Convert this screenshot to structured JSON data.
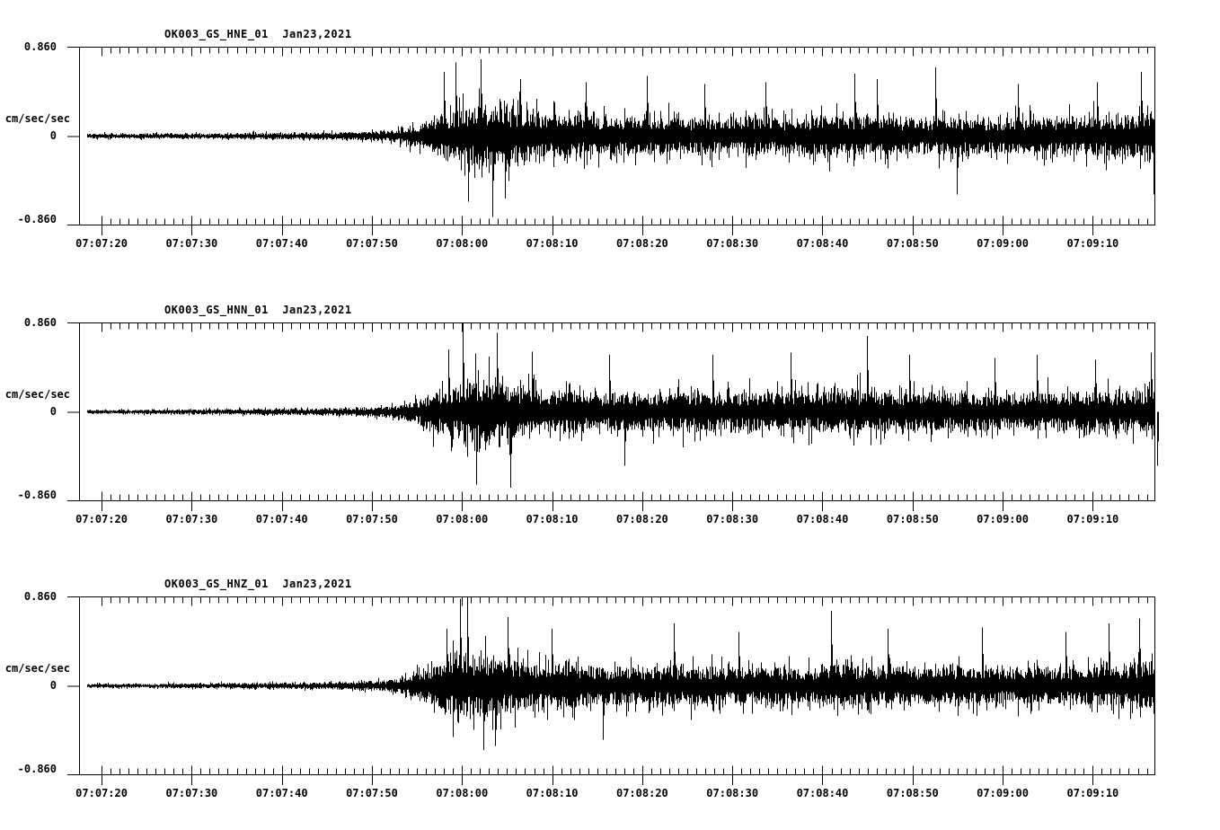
{
  "figure": {
    "background": "#ffffff",
    "foreground": "#000000",
    "panels": [
      {
        "id": "HNE",
        "title": "OK003_GS_HNE_01  Jan23,2021"
      },
      {
        "id": "HNN",
        "title": "OK003_GS_HNN_01  Jan23,2021"
      },
      {
        "id": "HNZ",
        "title": "OK003_GS_HNZ_01  Jan23,2021"
      }
    ],
    "y_axis": {
      "units": "cm/sec/sec",
      "max_label": "0.860",
      "zero_label": "0",
      "min_label": "-0.860",
      "max": 0.86,
      "min": -0.86
    },
    "x_axis": {
      "start_time": "07:07:17.5",
      "end_time": "07:09:17",
      "major_interval_sec": 10,
      "minor_interval_sec": 1,
      "first_major_offset_sec": 2.5,
      "major_tick_labels": [
        "07:07:20",
        "07:07:30",
        "07:07:40",
        "07:07:50",
        "07:08:00",
        "07:08:10",
        "07:08:20",
        "07:08:30",
        "07:08:40",
        "07:08:50",
        "07:09:00",
        "07:09:10"
      ]
    }
  },
  "chart_data": {
    "type": "line",
    "subtype": "seismogram-min-max-trace",
    "station_date": "Jan23,2021",
    "ylabel": "cm/sec/sec",
    "ylim": [
      -0.86,
      0.86
    ],
    "x_window": [
      "07:07:17.5",
      "07:09:17"
    ],
    "event_onset_time": "07:07:52",
    "peak_shaking_time": "07:08:00",
    "envelope_sample_step_sec": 2,
    "series": [
      {
        "name": "OK003_GS_HNE_01",
        "envelope": [
          0.035,
          0.035,
          0.035,
          0.035,
          0.035,
          0.04,
          0.04,
          0.04,
          0.04,
          0.045,
          0.045,
          0.05,
          0.05,
          0.055,
          0.055,
          0.06,
          0.065,
          0.08,
          0.12,
          0.2,
          0.3,
          0.4,
          0.47,
          0.48,
          0.42,
          0.37,
          0.33,
          0.35,
          0.31,
          0.28,
          0.3,
          0.32,
          0.28,
          0.3,
          0.28,
          0.26,
          0.28,
          0.31,
          0.29,
          0.26,
          0.28,
          0.31,
          0.33,
          0.3,
          0.28,
          0.3,
          0.28,
          0.27,
          0.3,
          0.28,
          0.27,
          0.26,
          0.28,
          0.27,
          0.28,
          0.3,
          0.29,
          0.31,
          0.33,
          0.37,
          0.4
        ],
        "spikes": [
          [
            40.5,
            0.62
          ],
          [
            41.8,
            0.71
          ],
          [
            43.2,
            -0.63
          ],
          [
            44.6,
            0.74
          ],
          [
            45.9,
            -0.78
          ],
          [
            47.3,
            -0.6
          ],
          [
            49.0,
            0.55
          ],
          [
            56.2,
            0.52
          ],
          [
            63.0,
            0.58
          ],
          [
            69.4,
            0.5
          ],
          [
            76.2,
            0.52
          ],
          [
            86.0,
            0.6
          ],
          [
            88.5,
            0.55
          ],
          [
            95.0,
            0.66
          ],
          [
            97.4,
            -0.56
          ],
          [
            104.2,
            0.5
          ],
          [
            113.0,
            0.52
          ],
          [
            117.8,
            0.62
          ],
          [
            119.2,
            -0.56
          ]
        ]
      },
      {
        "name": "OK003_GS_HNN_01",
        "envelope": [
          0.03,
          0.03,
          0.03,
          0.03,
          0.035,
          0.035,
          0.035,
          0.04,
          0.04,
          0.04,
          0.045,
          0.045,
          0.05,
          0.05,
          0.055,
          0.06,
          0.065,
          0.08,
          0.12,
          0.22,
          0.33,
          0.44,
          0.5,
          0.46,
          0.41,
          0.36,
          0.34,
          0.35,
          0.3,
          0.28,
          0.31,
          0.29,
          0.27,
          0.3,
          0.31,
          0.28,
          0.27,
          0.29,
          0.31,
          0.28,
          0.27,
          0.3,
          0.32,
          0.34,
          0.32,
          0.29,
          0.31,
          0.29,
          0.28,
          0.3,
          0.29,
          0.27,
          0.28,
          0.3,
          0.28,
          0.29,
          0.31,
          0.3,
          0.32,
          0.35,
          0.38
        ],
        "spikes": [
          [
            41.0,
            0.6
          ],
          [
            42.6,
            0.86
          ],
          [
            44.1,
            -0.7
          ],
          [
            46.4,
            0.76
          ],
          [
            47.9,
            -0.73
          ],
          [
            50.2,
            0.58
          ],
          [
            58.8,
            0.55
          ],
          [
            60.5,
            -0.52
          ],
          [
            70.3,
            0.55
          ],
          [
            79.0,
            0.57
          ],
          [
            87.4,
            0.73
          ],
          [
            92.1,
            0.55
          ],
          [
            101.6,
            0.52
          ],
          [
            106.3,
            0.55
          ],
          [
            112.8,
            0.5
          ],
          [
            118.9,
            0.57
          ],
          [
            119.6,
            -0.52
          ]
        ]
      },
      {
        "name": "OK003_GS_HNZ_01",
        "envelope": [
          0.03,
          0.03,
          0.03,
          0.03,
          0.03,
          0.035,
          0.035,
          0.035,
          0.04,
          0.04,
          0.04,
          0.045,
          0.045,
          0.05,
          0.055,
          0.06,
          0.065,
          0.08,
          0.13,
          0.23,
          0.35,
          0.46,
          0.5,
          0.44,
          0.39,
          0.35,
          0.33,
          0.34,
          0.31,
          0.29,
          0.3,
          0.28,
          0.27,
          0.29,
          0.31,
          0.29,
          0.27,
          0.28,
          0.3,
          0.28,
          0.26,
          0.29,
          0.33,
          0.31,
          0.28,
          0.3,
          0.28,
          0.27,
          0.29,
          0.3,
          0.28,
          0.26,
          0.28,
          0.29,
          0.27,
          0.28,
          0.3,
          0.31,
          0.33,
          0.38,
          0.42
        ],
        "spikes": [
          [
            40.8,
            0.55
          ],
          [
            42.3,
            0.84
          ],
          [
            43.1,
            0.86
          ],
          [
            44.9,
            -0.62
          ],
          [
            46.2,
            -0.58
          ],
          [
            47.6,
            0.66
          ],
          [
            52.4,
            0.55
          ],
          [
            58.1,
            -0.52
          ],
          [
            66.0,
            0.6
          ],
          [
            73.2,
            0.52
          ],
          [
            83.4,
            0.72
          ],
          [
            89.7,
            0.55
          ],
          [
            100.2,
            0.56
          ],
          [
            109.5,
            0.52
          ],
          [
            114.3,
            0.6
          ],
          [
            117.6,
            0.65
          ]
        ]
      }
    ]
  }
}
